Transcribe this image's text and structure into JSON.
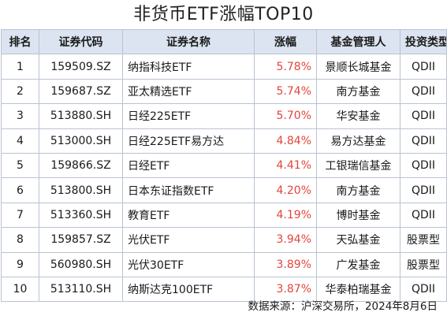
{
  "title": "非货币ETF涨幅TOP10",
  "table": {
    "headers": [
      "排名",
      "证券代码",
      "证券名称",
      "涨幅",
      "基金管理人",
      "投资类型"
    ],
    "rows": [
      {
        "rank": "1",
        "code": "159509.SZ",
        "name": "纳指科技ETF",
        "change": "5.78%",
        "manager": "景顺长城基金",
        "type": "QDII"
      },
      {
        "rank": "2",
        "code": "159687.SZ",
        "name": "亚太精选ETF",
        "change": "5.74%",
        "manager": "南方基金",
        "type": "QDII"
      },
      {
        "rank": "3",
        "code": "513880.SH",
        "name": "日经225ETF",
        "change": "5.70%",
        "manager": "华安基金",
        "type": "QDII"
      },
      {
        "rank": "4",
        "code": "513000.SH",
        "name": "日经225ETF易方达",
        "change": "4.84%",
        "manager": "易方达基金",
        "type": "QDII"
      },
      {
        "rank": "5",
        "code": "159866.SZ",
        "name": "日经ETF",
        "change": "4.41%",
        "manager": "工银瑞信基金",
        "type": "QDII"
      },
      {
        "rank": "6",
        "code": "513800.SH",
        "name": "日本东证指数ETF",
        "change": "4.20%",
        "manager": "南方基金",
        "type": "QDII"
      },
      {
        "rank": "7",
        "code": "513360.SH",
        "name": "教育ETF",
        "change": "4.19%",
        "manager": "博时基金",
        "type": "QDII"
      },
      {
        "rank": "8",
        "code": "159857.SZ",
        "name": "光伏ETF",
        "change": "3.94%",
        "manager": "天弘基金",
        "type": "股票型"
      },
      {
        "rank": "9",
        "code": "560980.SH",
        "name": "光伏30ETF",
        "change": "3.89%",
        "manager": "广发基金",
        "type": "股票型"
      },
      {
        "rank": "10",
        "code": "513110.SH",
        "name": "纳斯达克100ETF",
        "change": "3.87%",
        "manager": "华泰柏瑞基金",
        "type": "QDII"
      }
    ]
  },
  "footer": "数据来源：沪深交易所，2024年8月6日",
  "colors": {
    "header_bg": "#dbe4f0",
    "border": "#b9c3d3",
    "positive_change": "#e2453c"
  }
}
